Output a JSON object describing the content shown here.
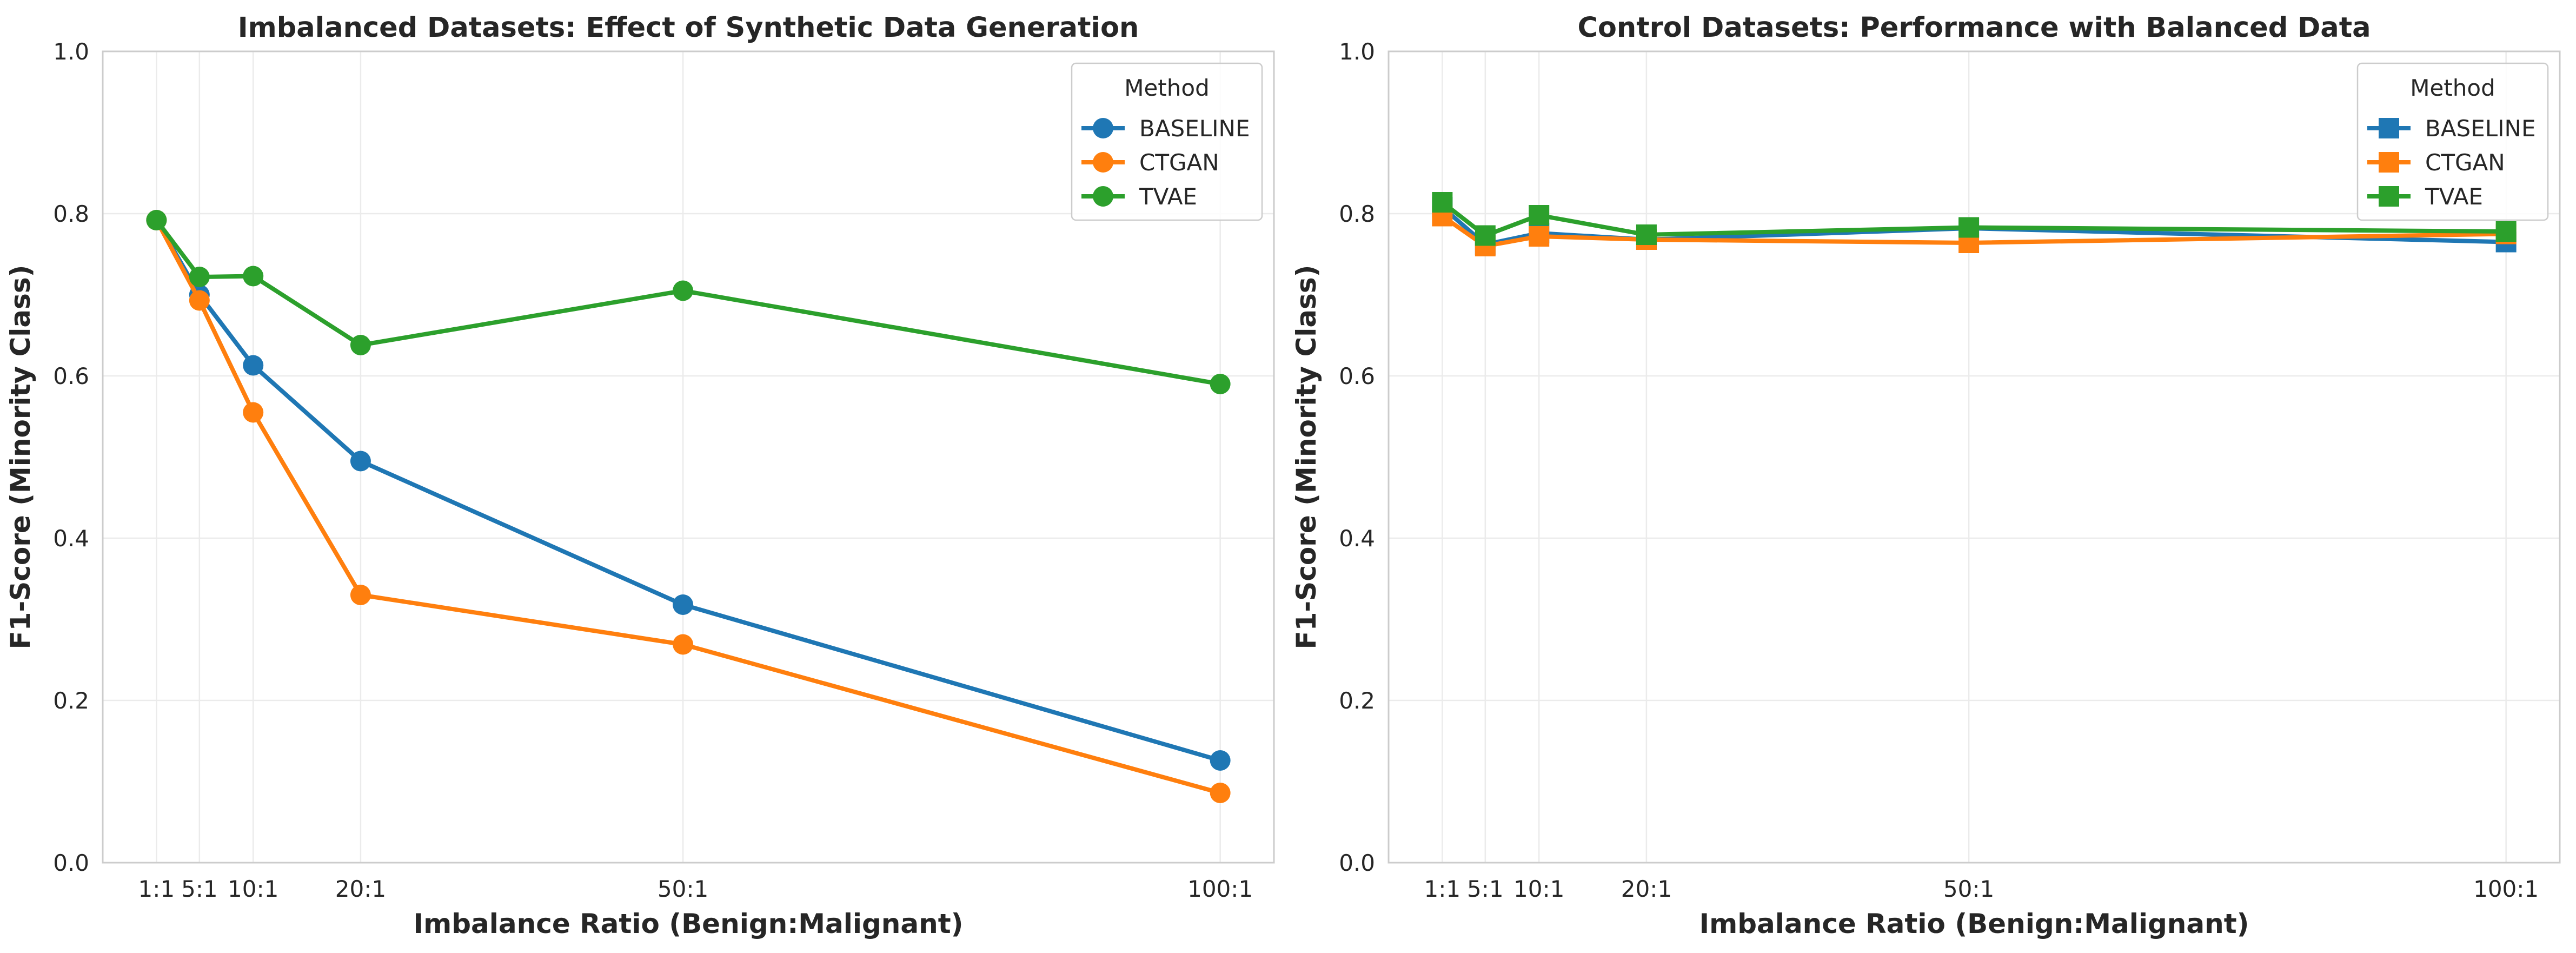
{
  "chart_data": [
    {
      "type": "line",
      "marker": "circle",
      "title": "Imbalanced Datasets: Effect of Synthetic Data Generation",
      "xlabel": "Imbalance Ratio (Benign:Malignant)",
      "ylabel": "F1-Score (Minority Class)",
      "x": [
        1,
        5,
        10,
        20,
        50,
        100
      ],
      "x_tick_labels": [
        "1:1",
        "5:1",
        "10:1",
        "20:1",
        "50:1",
        "100:1"
      ],
      "xlim": [
        -4,
        105
      ],
      "ylim": [
        0.0,
        1.0
      ],
      "y_ticks": [
        "0.0",
        "0.2",
        "0.4",
        "0.6",
        "0.8",
        "1.0"
      ],
      "grid": true,
      "legend_title": "Method",
      "legend_position": "top-right",
      "series": [
        {
          "name": "BASELINE",
          "color": "#1f77b4",
          "values": [
            0.792,
            0.7,
            0.613,
            0.495,
            0.318,
            0.126
          ]
        },
        {
          "name": "CTGAN",
          "color": "#ff7f0e",
          "values": [
            0.792,
            0.693,
            0.555,
            0.33,
            0.269,
            0.086
          ]
        },
        {
          "name": "TVAE",
          "color": "#2ca02c",
          "values": [
            0.792,
            0.722,
            0.723,
            0.638,
            0.705,
            0.59
          ]
        }
      ]
    },
    {
      "type": "line",
      "marker": "square",
      "title": "Control Datasets: Performance with Balanced Data",
      "xlabel": "Imbalance Ratio (Benign:Malignant)",
      "ylabel": "F1-Score (Minority Class)",
      "x": [
        1,
        5,
        10,
        20,
        50,
        100
      ],
      "x_tick_labels": [
        "1:1",
        "5:1",
        "10:1",
        "20:1",
        "50:1",
        "100:1"
      ],
      "xlim": [
        -4,
        105
      ],
      "ylim": [
        0.0,
        1.0
      ],
      "y_ticks": [
        "0.0",
        "0.2",
        "0.4",
        "0.6",
        "0.8",
        "1.0"
      ],
      "grid": true,
      "legend_title": "Method",
      "legend_position": "top-right",
      "series": [
        {
          "name": "BASELINE",
          "color": "#1f77b4",
          "values": [
            0.808,
            0.762,
            0.776,
            0.768,
            0.782,
            0.765
          ]
        },
        {
          "name": "CTGAN",
          "color": "#ff7f0e",
          "values": [
            0.797,
            0.76,
            0.772,
            0.768,
            0.764,
            0.775
          ]
        },
        {
          "name": "TVAE",
          "color": "#2ca02c",
          "values": [
            0.814,
            0.773,
            0.798,
            0.774,
            0.783,
            0.778
          ]
        }
      ]
    }
  ]
}
